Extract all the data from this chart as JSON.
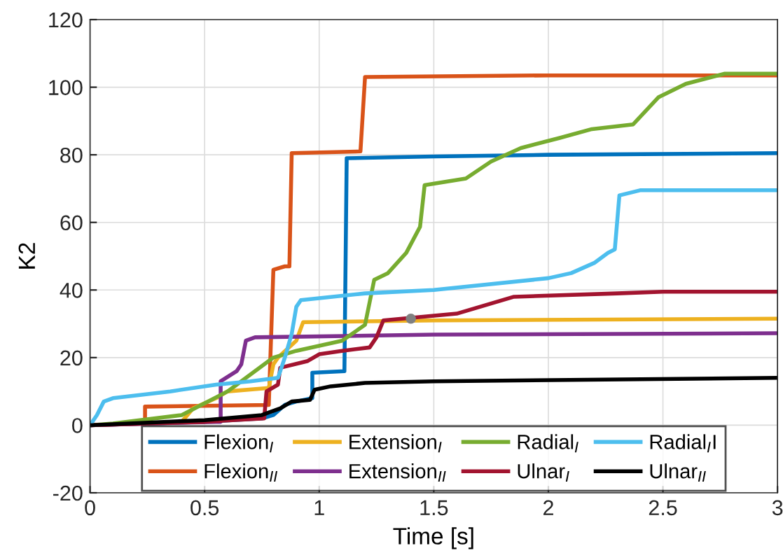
{
  "chart_data": {
    "type": "line",
    "xlabel": "Time [s]",
    "ylabel": "K2",
    "xlim": [
      0,
      3
    ],
    "ylim": [
      -20,
      120
    ],
    "xticks": [
      0,
      0.5,
      1,
      1.5,
      2,
      2.5,
      3
    ],
    "yticks": [
      -20,
      0,
      20,
      40,
      60,
      80,
      100,
      120
    ],
    "grid": true,
    "legend": "bottom",
    "series": [
      {
        "name": "Flexion$_{I}$",
        "color": "#0072bd",
        "x": [
          0,
          0.5,
          0.75,
          0.8,
          0.85,
          0.9,
          0.97,
          0.97,
          1.11,
          1.12,
          1.5,
          2,
          3
        ],
        "values": [
          0,
          1,
          2,
          3,
          6,
          7,
          8,
          15.5,
          16,
          79,
          79.5,
          80,
          80.5
        ]
      },
      {
        "name": "Flexion$_{II}$",
        "color": "#d95319",
        "x": [
          0,
          0.24,
          0.24,
          0.78,
          0.8,
          0.85,
          0.87,
          0.88,
          1.18,
          1.2,
          2,
          3
        ],
        "values": [
          0,
          0.5,
          5.5,
          6,
          46,
          47,
          47,
          80.5,
          81,
          103,
          103.5,
          103.5
        ]
      },
      {
        "name": "Extension$_{I}$",
        "color": "#edb120",
        "x": [
          0,
          0.4,
          0.45,
          0.55,
          0.6,
          0.78,
          0.8,
          0.82,
          0.9,
          0.93,
          1.5,
          3
        ],
        "values": [
          0,
          1,
          5,
          8,
          10,
          11,
          18,
          20,
          25,
          30.5,
          31,
          31.5
        ]
      },
      {
        "name": "Extension$_{II}$",
        "color": "#7e2f8e",
        "x": [
          0,
          0.55,
          0.57,
          0.57,
          0.64,
          0.66,
          0.68,
          0.72,
          1.5,
          3
        ],
        "values": [
          0,
          1,
          1,
          13,
          16,
          18,
          25,
          26,
          26.8,
          27.2
        ]
      },
      {
        "name": "Radial$_{I}$",
        "color": "#77ac30",
        "x": [
          0,
          0.1,
          0.4,
          0.6,
          0.8,
          0.9,
          1.1,
          1.2,
          1.24,
          1.3,
          1.38,
          1.44,
          1.46,
          1.64,
          1.75,
          1.88,
          2.05,
          2.19,
          2.37,
          2.48,
          2.6,
          2.77,
          3
        ],
        "values": [
          0,
          0.5,
          3,
          10,
          20,
          22,
          25,
          29.7,
          43,
          45,
          51,
          58.7,
          71,
          73,
          78,
          82,
          85,
          87.6,
          89,
          97,
          101,
          104,
          104
        ]
      },
      {
        "name": "Ulnar$_{I}$",
        "color": "#a2142f",
        "x": [
          0,
          0.5,
          0.76,
          0.77,
          0.82,
          0.83,
          0.95,
          1.0,
          1.1,
          1.22,
          1.25,
          1.28,
          1.6,
          1.85,
          2.3,
          2.5,
          3
        ],
        "values": [
          0,
          1,
          2,
          10,
          12,
          17,
          19,
          21,
          22,
          23,
          26,
          31,
          33,
          38,
          39,
          39.5,
          39.5
        ]
      },
      {
        "name": "Radial$_{I}$I",
        "color": "#4dbeee",
        "x": [
          0,
          0.03,
          0.06,
          0.1,
          0.35,
          0.55,
          0.7,
          0.82,
          0.85,
          0.88,
          0.9,
          0.92,
          1.2,
          1.5,
          2.0,
          2.1,
          2.2,
          2.26,
          2.29,
          2.31,
          2.4,
          3
        ],
        "values": [
          0,
          3,
          7,
          8,
          10,
          12,
          13,
          14,
          20,
          27,
          35,
          37,
          39,
          40,
          43.5,
          45,
          48,
          51,
          52,
          68,
          69.5,
          69.5
        ]
      },
      {
        "name": "Ulnar$_{II}$",
        "color": "#000000",
        "x": [
          0,
          0.5,
          0.75,
          0.83,
          0.88,
          0.96,
          0.98,
          1.05,
          1.2,
          1.5,
          3
        ],
        "values": [
          0,
          1.5,
          3,
          5,
          7,
          7.5,
          10.5,
          11.5,
          12.5,
          13,
          14
        ]
      },
      {
        "type": "scatter",
        "color": "#808080",
        "x": [
          1.4
        ],
        "values": [
          31.5
        ],
        "marker": "circle"
      }
    ]
  }
}
